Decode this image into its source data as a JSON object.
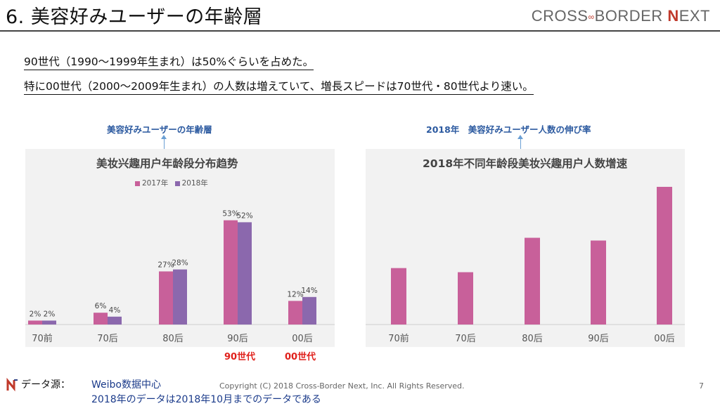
{
  "header": {
    "title": "6. 美容好みユーザーの年齢層",
    "logo_text_a": "CROSS",
    "logo_sep": "∞",
    "logo_text_b": "BORDER ",
    "logo_n": "N",
    "logo_text_c": "EXT"
  },
  "bullets": {
    "line1": "90世代（1990～1999年生まれ）は50%ぐらいを占めた。",
    "line2": "特に00世代（2000～2009年生まれ）の人数は増えていて、増長スピードは70世代・80世代より速い。"
  },
  "annotations": {
    "left": "美容好みユーザーの年齢層",
    "right": "2018年　美容好みユーザー人数の伸び率"
  },
  "eras": {
    "era90": "90世代",
    "era00": "00世代"
  },
  "footer": {
    "source_label": "データ源：",
    "source_name": "Weibo数据中心",
    "source_note": "2018年のデータは2018年10月までのデータである",
    "copyright": "Copyright (C) 2018 Cross-Border Next, Inc. All Rights Reserved.",
    "page_number": "7"
  },
  "colors": {
    "pink": "#c8609a",
    "purple": "#8b68ad",
    "panel": "#f2f2f2",
    "era": "#e0201b"
  },
  "chart_data": [
    {
      "type": "bar",
      "title": "美妆兴趣用户年龄段分布趋势",
      "categories": [
        "70前",
        "70后",
        "80后",
        "90后",
        "00后"
      ],
      "series": [
        {
          "name": "2017年",
          "values": [
            2,
            6,
            27,
            53,
            12
          ],
          "labels": [
            "2%",
            "6%",
            "27%",
            "53%",
            "12%"
          ]
        },
        {
          "name": "2018年",
          "values": [
            2,
            4,
            28,
            52,
            14
          ],
          "labels": [
            "2%",
            "4%",
            "28%",
            "52%",
            "14%"
          ]
        }
      ],
      "ylim": [
        0,
        60
      ],
      "legend": "top-left"
    },
    {
      "type": "bar",
      "title": "2018年不同年龄段美妆兴趣用户人数增速",
      "categories": [
        "70前",
        "70后",
        "80后",
        "90后",
        "00后"
      ],
      "values": [
        41,
        38,
        63,
        61,
        100
      ],
      "ylim": [
        0,
        100
      ]
    }
  ]
}
